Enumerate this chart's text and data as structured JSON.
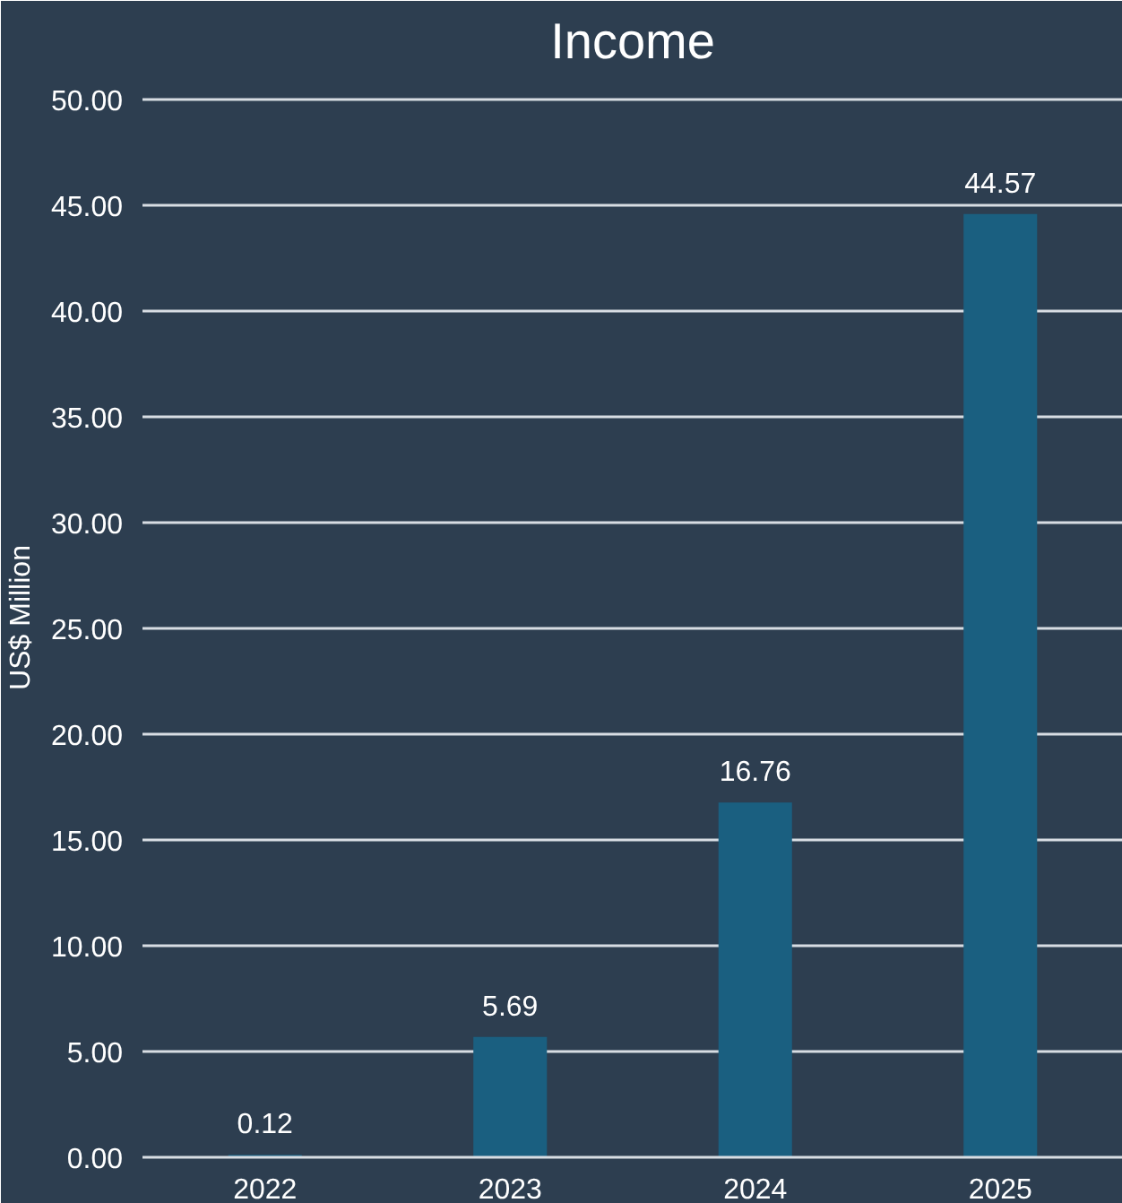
{
  "chart_data": {
    "type": "bar",
    "title": "Income",
    "ylabel": "US$ Million",
    "categories": [
      "2022",
      "2023",
      "2024",
      "2025"
    ],
    "values": [
      0.12,
      5.69,
      16.76,
      44.57
    ],
    "color": "#1a5f80",
    "ylim": [
      0,
      51
    ],
    "yticks": [
      {
        "value": 0,
        "label": "0.00"
      },
      {
        "value": 5,
        "label": "5.00"
      },
      {
        "value": 10,
        "label": "10.00"
      },
      {
        "value": 15,
        "label": "15.00"
      },
      {
        "value": 20,
        "label": "20.00"
      },
      {
        "value": 25,
        "label": "25.00"
      },
      {
        "value": 30,
        "label": "30.00"
      },
      {
        "value": 35,
        "label": "35.00"
      },
      {
        "value": 40,
        "label": "40.00"
      },
      {
        "value": 45,
        "label": "45.00"
      },
      {
        "value": 50,
        "label": "50.00"
      }
    ],
    "grid": "y",
    "data_labels": true
  }
}
